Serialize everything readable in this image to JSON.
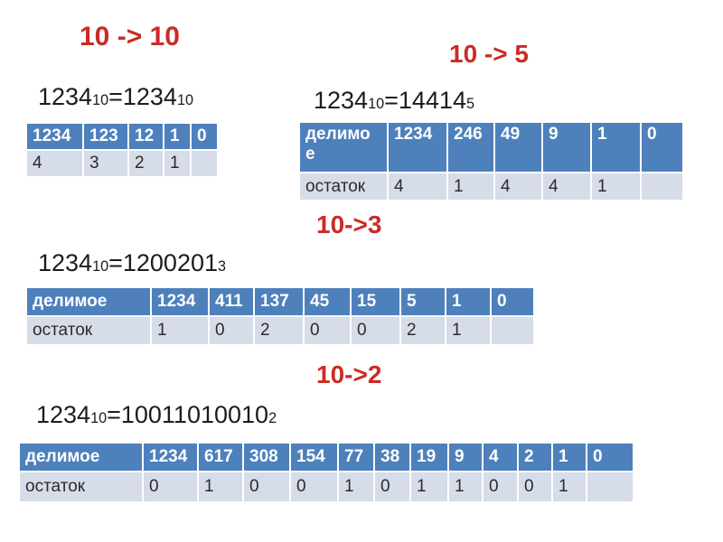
{
  "colors": {
    "background": "#ffffff",
    "heading_red": "#cb2b26",
    "table_header_blue": "#4e80bc",
    "table_row_light": "#d6dce8",
    "table_header_text": "#ffffff",
    "table_data_text": "#2b2b2b",
    "equation_text": "#1c1c1c"
  },
  "sections": [
    {
      "heading": "10 -> 10",
      "equation": {
        "lhs": "1234",
        "lhs_sub": "10",
        "eq_sign": "=",
        "rhs": "1234",
        "rhs_sub": "10"
      },
      "table": {
        "header": [
          "1234",
          "123",
          "12",
          "1",
          "0"
        ],
        "row": [
          "4",
          "3",
          "2",
          "1",
          ""
        ]
      }
    },
    {
      "heading": "10 -> 5",
      "equation": {
        "lhs": "1234",
        "lhs_sub": "10",
        "eq_sign": "=",
        "rhs": "14414",
        "rhs_sub": "5"
      },
      "table": {
        "row_label_header": "делимое",
        "row_label_data": "остаток",
        "header": [
          "1234",
          "246",
          "49",
          "9",
          "1",
          "0"
        ],
        "row": [
          "4",
          "1",
          "4",
          "4",
          "1",
          ""
        ]
      }
    },
    {
      "heading": "10->3",
      "equation": {
        "lhs": "1234",
        "lhs_sub": "10",
        "eq_sign": "=",
        "rhs": "1200201",
        "rhs_sub": "3"
      },
      "table": {
        "row_label_header": "делимое",
        "row_label_data": "остаток",
        "header": [
          "1234",
          "411",
          "137",
          "45",
          "15",
          "5",
          "1",
          "0"
        ],
        "row": [
          "1",
          "0",
          "2",
          "0",
          "0",
          "2",
          "1",
          ""
        ]
      }
    },
    {
      "heading": "10->2",
      "equation": {
        "lhs": "1234",
        "lhs_sub": "10",
        "eq_sign": "=",
        "rhs": "10011010010",
        "rhs_sub": "2"
      },
      "table": {
        "row_label_header": "делимое",
        "row_label_data": "остаток",
        "header": [
          "1234",
          "617",
          "308",
          "154",
          "77",
          "38",
          "19",
          "9",
          "4",
          "2",
          "1",
          "0"
        ],
        "row": [
          "0",
          "1",
          "0",
          "0",
          "1",
          "0",
          "1",
          "1",
          "0",
          "0",
          "1",
          ""
        ]
      }
    }
  ]
}
